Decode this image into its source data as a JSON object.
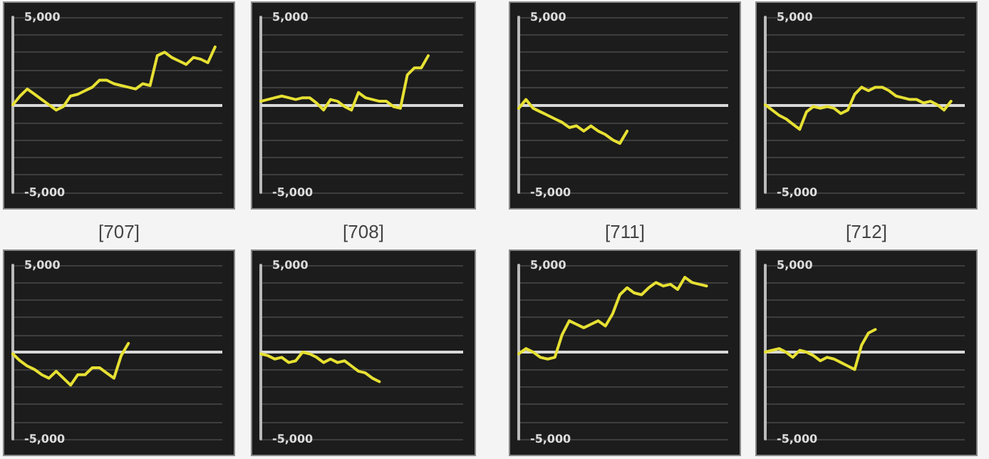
{
  "chart_data": [
    {
      "type": "line",
      "categories": [
        null,
        null,
        null,
        null,
        null,
        null,
        null,
        null,
        null,
        null,
        null,
        null,
        null,
        null,
        null,
        null,
        null,
        null,
        null,
        null,
        null,
        null,
        null,
        null,
        null,
        null,
        null,
        null,
        null,
        null
      ],
      "series": [
        {
          "color": "#e6e033",
          "values": [
            0,
            500,
            900,
            600,
            300,
            0,
            -300,
            -100,
            500,
            600,
            800,
            1000,
            1400,
            1400,
            1200,
            1100,
            1000,
            900,
            1200,
            1100,
            2800,
            3000,
            2700,
            2500,
            2300,
            2700,
            2600,
            2400,
            3300,
            null
          ]
        }
      ],
      "ylim": [
        -5000,
        5000
      ],
      "yticks": [
        {
          "value": 5000,
          "label": "5,000"
        },
        {
          "value": 4000,
          "label": null
        },
        {
          "value": 3000,
          "label": null
        },
        {
          "value": 2000,
          "label": null
        },
        {
          "value": 1000,
          "label": null
        },
        {
          "value": 0,
          "label": null
        },
        {
          "value": -1000,
          "label": null
        },
        {
          "value": -2000,
          "label": null
        },
        {
          "value": -3000,
          "label": null
        },
        {
          "value": -4000,
          "label": null
        },
        {
          "value": -5000,
          "label": "-5,000"
        }
      ],
      "ref_lines": [
        {
          "axis": "y",
          "value": 0,
          "color": "#d8d8d8"
        }
      ],
      "grid": "y",
      "line_style": "solid",
      "tick_labels": "y"
    },
    {
      "type": "line",
      "categories": [
        null,
        null,
        null,
        null,
        null,
        null,
        null,
        null,
        null,
        null,
        null,
        null,
        null,
        null,
        null,
        null,
        null,
        null,
        null,
        null,
        null,
        null,
        null,
        null,
        null,
        null,
        null,
        null,
        null,
        null
      ],
      "series": [
        {
          "color": "#e6e033",
          "values": [
            200,
            300,
            400,
            500,
            400,
            300,
            400,
            400,
            100,
            -300,
            300,
            200,
            -100,
            -300,
            700,
            400,
            300,
            200,
            200,
            -100,
            -200,
            1700,
            2100,
            2100,
            2800,
            null,
            null,
            null,
            null,
            null
          ]
        }
      ],
      "ylim": [
        -5000,
        5000
      ],
      "yticks": [
        {
          "value": 5000,
          "label": "5,000"
        },
        {
          "value": 4000,
          "label": null
        },
        {
          "value": 3000,
          "label": null
        },
        {
          "value": 2000,
          "label": null
        },
        {
          "value": 1000,
          "label": null
        },
        {
          "value": 0,
          "label": null
        },
        {
          "value": -1000,
          "label": null
        },
        {
          "value": -2000,
          "label": null
        },
        {
          "value": -3000,
          "label": null
        },
        {
          "value": -4000,
          "label": null
        },
        {
          "value": -5000,
          "label": "-5,000"
        }
      ],
      "ref_lines": [
        {
          "axis": "y",
          "value": 0,
          "color": "#d8d8d8"
        }
      ],
      "grid": "y",
      "line_style": "solid",
      "tick_labels": "y"
    },
    {
      "type": "line",
      "categories": [
        null,
        null,
        null,
        null,
        null,
        null,
        null,
        null,
        null,
        null,
        null,
        null,
        null,
        null,
        null,
        null,
        null,
        null,
        null,
        null,
        null,
        null,
        null,
        null,
        null,
        null,
        null,
        null,
        null,
        null
      ],
      "series": [
        {
          "color": "#e6e033",
          "values": [
            -200,
            300,
            -200,
            -400,
            -600,
            -800,
            -1000,
            -1300,
            -1200,
            -1500,
            -1200,
            -1500,
            -1700,
            -2000,
            -2200,
            -1500,
            null,
            null,
            null,
            null,
            null,
            null,
            null,
            null,
            null,
            null,
            null,
            null,
            null,
            null
          ]
        }
      ],
      "ylim": [
        -5000,
        5000
      ],
      "yticks": [
        {
          "value": 5000,
          "label": "5,000"
        },
        {
          "value": 4000,
          "label": null
        },
        {
          "value": 3000,
          "label": null
        },
        {
          "value": 2000,
          "label": null
        },
        {
          "value": 1000,
          "label": null
        },
        {
          "value": 0,
          "label": null
        },
        {
          "value": -1000,
          "label": null
        },
        {
          "value": -2000,
          "label": null
        },
        {
          "value": -3000,
          "label": null
        },
        {
          "value": -4000,
          "label": null
        },
        {
          "value": -5000,
          "label": "-5,000"
        }
      ],
      "ref_lines": [
        {
          "axis": "y",
          "value": 0,
          "color": "#d8d8d8"
        }
      ],
      "grid": "y",
      "line_style": "solid",
      "tick_labels": "y"
    },
    {
      "type": "line",
      "categories": [
        null,
        null,
        null,
        null,
        null,
        null,
        null,
        null,
        null,
        null,
        null,
        null,
        null,
        null,
        null,
        null,
        null,
        null,
        null,
        null,
        null,
        null,
        null,
        null,
        null,
        null,
        null,
        null,
        null,
        null
      ],
      "series": [
        {
          "color": "#e6e033",
          "values": [
            0,
            -300,
            -600,
            -800,
            -1100,
            -1400,
            -400,
            -100,
            -200,
            -100,
            -200,
            -500,
            -300,
            600,
            1000,
            800,
            1000,
            1000,
            800,
            500,
            400,
            300,
            300,
            100,
            200,
            0,
            -300,
            200,
            null,
            null
          ]
        }
      ],
      "ylim": [
        -5000,
        5000
      ],
      "yticks": [
        {
          "value": 5000,
          "label": "5,000"
        },
        {
          "value": 4000,
          "label": null
        },
        {
          "value": 3000,
          "label": null
        },
        {
          "value": 2000,
          "label": null
        },
        {
          "value": 1000,
          "label": null
        },
        {
          "value": 0,
          "label": null
        },
        {
          "value": -1000,
          "label": null
        },
        {
          "value": -2000,
          "label": null
        },
        {
          "value": -3000,
          "label": null
        },
        {
          "value": -4000,
          "label": null
        },
        {
          "value": -5000,
          "label": "-5,000"
        }
      ],
      "ref_lines": [
        {
          "axis": "y",
          "value": 0,
          "color": "#d8d8d8"
        }
      ],
      "grid": "y",
      "line_style": "solid",
      "tick_labels": "y"
    },
    {
      "type": "line",
      "title": "[707]",
      "categories": [
        null,
        null,
        null,
        null,
        null,
        null,
        null,
        null,
        null,
        null,
        null,
        null,
        null,
        null,
        null,
        null,
        null,
        null,
        null,
        null,
        null,
        null,
        null,
        null,
        null,
        null,
        null,
        null,
        null,
        null
      ],
      "series": [
        {
          "color": "#e6e033",
          "values": [
            -100,
            -500,
            -800,
            -1000,
            -1300,
            -1500,
            -1100,
            -1500,
            -1900,
            -1300,
            -1300,
            -900,
            -900,
            -1200,
            -1500,
            -200,
            500,
            null,
            null,
            null,
            null,
            null,
            null,
            null,
            null,
            null,
            null,
            null,
            null,
            null
          ]
        }
      ],
      "ylim": [
        -5000,
        5000
      ],
      "yticks": [
        {
          "value": 5000,
          "label": "5,000"
        },
        {
          "value": 4000,
          "label": null
        },
        {
          "value": 3000,
          "label": null
        },
        {
          "value": 2000,
          "label": null
        },
        {
          "value": 1000,
          "label": null
        },
        {
          "value": 0,
          "label": null
        },
        {
          "value": -1000,
          "label": null
        },
        {
          "value": -2000,
          "label": null
        },
        {
          "value": -3000,
          "label": null
        },
        {
          "value": -4000,
          "label": null
        },
        {
          "value": -5000,
          "label": "-5,000"
        }
      ],
      "ref_lines": [
        {
          "axis": "y",
          "value": 0,
          "color": "#d8d8d8"
        }
      ],
      "grid": "y",
      "line_style": "solid",
      "tick_labels": "y"
    },
    {
      "type": "line",
      "title": "[708]",
      "categories": [
        null,
        null,
        null,
        null,
        null,
        null,
        null,
        null,
        null,
        null,
        null,
        null,
        null,
        null,
        null,
        null,
        null,
        null,
        null,
        null,
        null,
        null,
        null,
        null,
        null,
        null,
        null,
        null,
        null,
        null
      ],
      "series": [
        {
          "color": "#e6e033",
          "values": [
            -100,
            -200,
            -400,
            -300,
            -600,
            -500,
            0,
            -100,
            -300,
            -600,
            -400,
            -600,
            -500,
            -800,
            -1100,
            -1200,
            -1500,
            -1700,
            null,
            null,
            null,
            null,
            null,
            null,
            null,
            null,
            null,
            null,
            null,
            null
          ]
        }
      ],
      "ylim": [
        -5000,
        5000
      ],
      "yticks": [
        {
          "value": 5000,
          "label": "5,000"
        },
        {
          "value": 4000,
          "label": null
        },
        {
          "value": 3000,
          "label": null
        },
        {
          "value": 2000,
          "label": null
        },
        {
          "value": 1000,
          "label": null
        },
        {
          "value": 0,
          "label": null
        },
        {
          "value": -1000,
          "label": null
        },
        {
          "value": -2000,
          "label": null
        },
        {
          "value": -3000,
          "label": null
        },
        {
          "value": -4000,
          "label": null
        },
        {
          "value": -5000,
          "label": "-5,000"
        }
      ],
      "ref_lines": [
        {
          "axis": "y",
          "value": 0,
          "color": "#d8d8d8"
        }
      ],
      "grid": "y",
      "line_style": "solid",
      "tick_labels": "y"
    },
    {
      "type": "line",
      "title": "[711]",
      "categories": [
        null,
        null,
        null,
        null,
        null,
        null,
        null,
        null,
        null,
        null,
        null,
        null,
        null,
        null,
        null,
        null,
        null,
        null,
        null,
        null,
        null,
        null,
        null,
        null,
        null,
        null,
        null,
        null,
        null,
        null
      ],
      "series": [
        {
          "color": "#e6e033",
          "values": [
            -100,
            200,
            0,
            -300,
            -400,
            -300,
            1000,
            1800,
            1600,
            1400,
            1600,
            1800,
            1500,
            2200,
            3300,
            3700,
            3400,
            3300,
            3700,
            4000,
            3800,
            3900,
            3600,
            4300,
            4000,
            3900,
            3800,
            null,
            null,
            null
          ]
        }
      ],
      "ylim": [
        -5000,
        5000
      ],
      "yticks": [
        {
          "value": 5000,
          "label": "5,000"
        },
        {
          "value": 4000,
          "label": null
        },
        {
          "value": 3000,
          "label": null
        },
        {
          "value": 2000,
          "label": null
        },
        {
          "value": 1000,
          "label": null
        },
        {
          "value": 0,
          "label": null
        },
        {
          "value": -1000,
          "label": null
        },
        {
          "value": -2000,
          "label": null
        },
        {
          "value": -3000,
          "label": null
        },
        {
          "value": -4000,
          "label": null
        },
        {
          "value": -5000,
          "label": "-5,000"
        }
      ],
      "ref_lines": [
        {
          "axis": "y",
          "value": 0,
          "color": "#d8d8d8"
        }
      ],
      "grid": "y",
      "line_style": "solid",
      "tick_labels": "y"
    },
    {
      "type": "line",
      "title": "[712]",
      "categories": [
        null,
        null,
        null,
        null,
        null,
        null,
        null,
        null,
        null,
        null,
        null,
        null,
        null,
        null,
        null,
        null,
        null,
        null,
        null,
        null,
        null,
        null,
        null,
        null,
        null,
        null,
        null,
        null,
        null,
        null
      ],
      "series": [
        {
          "color": "#e6e033",
          "values": [
            0,
            100,
            200,
            0,
            -300,
            100,
            0,
            -200,
            -500,
            -300,
            -400,
            -600,
            -800,
            -1000,
            400,
            1100,
            1300,
            null,
            null,
            null,
            null,
            null,
            null,
            null,
            null,
            null,
            null,
            null,
            null,
            null
          ]
        }
      ],
      "ylim": [
        -5000,
        5000
      ],
      "yticks": [
        {
          "value": 5000,
          "label": "5,000"
        },
        {
          "value": 4000,
          "label": null
        },
        {
          "value": 3000,
          "label": null
        },
        {
          "value": 2000,
          "label": null
        },
        {
          "value": 1000,
          "label": null
        },
        {
          "value": 0,
          "label": null
        },
        {
          "value": -1000,
          "label": null
        },
        {
          "value": -2000,
          "label": null
        },
        {
          "value": -3000,
          "label": null
        },
        {
          "value": -4000,
          "label": null
        },
        {
          "value": -5000,
          "label": "-5,000"
        }
      ],
      "ref_lines": [
        {
          "axis": "y",
          "value": 0,
          "color": "#d8d8d8"
        }
      ],
      "grid": "y",
      "line_style": "solid",
      "tick_labels": "y"
    }
  ]
}
